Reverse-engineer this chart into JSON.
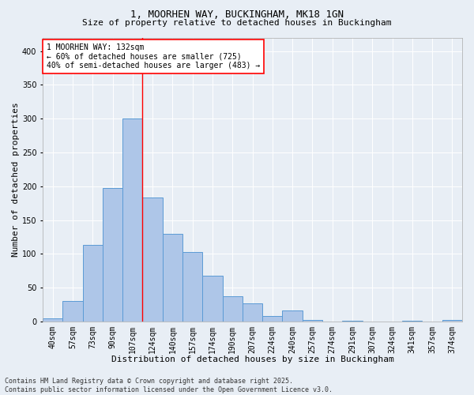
{
  "title_line1": "1, MOORHEN WAY, BUCKINGHAM, MK18 1GN",
  "title_line2": "Size of property relative to detached houses in Buckingham",
  "xlabel": "Distribution of detached houses by size in Buckingham",
  "ylabel": "Number of detached properties",
  "categories": [
    "40sqm",
    "57sqm",
    "73sqm",
    "90sqm",
    "107sqm",
    "124sqm",
    "140sqm",
    "157sqm",
    "174sqm",
    "190sqm",
    "207sqm",
    "224sqm",
    "240sqm",
    "257sqm",
    "274sqm",
    "291sqm",
    "307sqm",
    "324sqm",
    "341sqm",
    "357sqm",
    "374sqm"
  ],
  "values": [
    5,
    30,
    113,
    197,
    300,
    183,
    130,
    103,
    68,
    37,
    27,
    8,
    16,
    3,
    0,
    1,
    0,
    0,
    1,
    0,
    2
  ],
  "bar_color": "#aec6e8",
  "bar_edge_color": "#5b9bd5",
  "vline_x_index": 5,
  "vline_color": "red",
  "annotation_text": "1 MOORHEN WAY: 132sqm\n← 60% of detached houses are smaller (725)\n40% of semi-detached houses are larger (483) →",
  "annotation_box_color": "white",
  "annotation_box_edge_color": "red",
  "ylim": [
    0,
    420
  ],
  "yticks": [
    0,
    50,
    100,
    150,
    200,
    250,
    300,
    350,
    400
  ],
  "background_color": "#e8eef5",
  "plot_background_color": "#e8eef5",
  "footer_line1": "Contains HM Land Registry data © Crown copyright and database right 2025.",
  "footer_line2": "Contains public sector information licensed under the Open Government Licence v3.0.",
  "title_fontsize": 9,
  "subtitle_fontsize": 8,
  "xlabel_fontsize": 8,
  "ylabel_fontsize": 8,
  "tick_fontsize": 7,
  "annotation_fontsize": 7,
  "footer_fontsize": 6
}
